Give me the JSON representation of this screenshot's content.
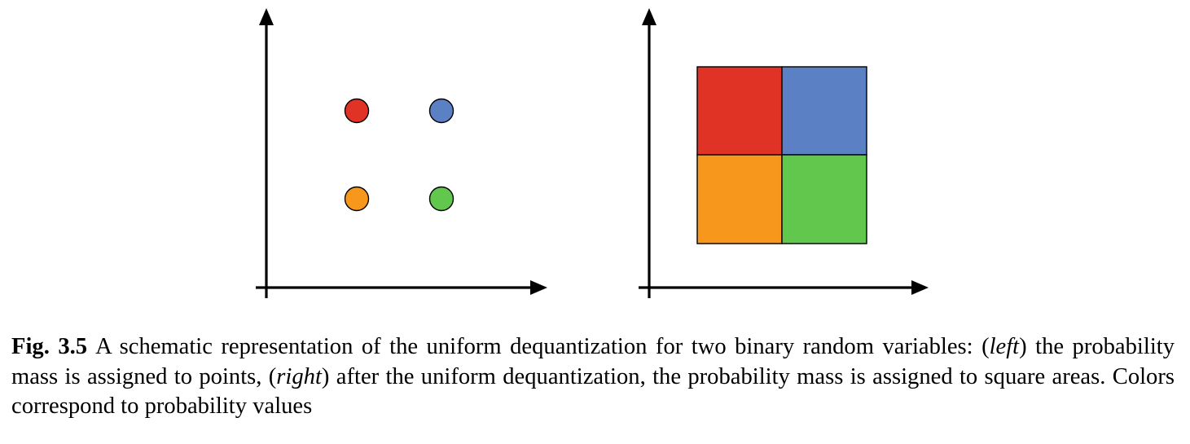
{
  "figure": {
    "left_panel": {
      "points": [
        {
          "name": "top-left-point",
          "color": "#e03326"
        },
        {
          "name": "top-right-point",
          "color": "#5b80c4"
        },
        {
          "name": "bottom-left-point",
          "color": "#f7981d"
        },
        {
          "name": "bottom-right-point",
          "color": "#62c74d"
        }
      ]
    },
    "right_panel": {
      "squares": [
        {
          "name": "top-left-square",
          "color": "#e03326"
        },
        {
          "name": "top-right-square",
          "color": "#5b80c4"
        },
        {
          "name": "bottom-left-square",
          "color": "#f7981d"
        },
        {
          "name": "bottom-right-square",
          "color": "#62c74d"
        }
      ]
    }
  },
  "caption": {
    "label": "Fig. 3.5",
    "text_1": "A schematic representation of the uniform dequantization for two binary random variables: (",
    "em_1": "left",
    "text_2": ") the probability mass is assigned to points, (",
    "em_2": "right",
    "text_3": ") after the uniform dequantization, the probability mass is assigned to square areas. Colors correspond to probability values"
  }
}
